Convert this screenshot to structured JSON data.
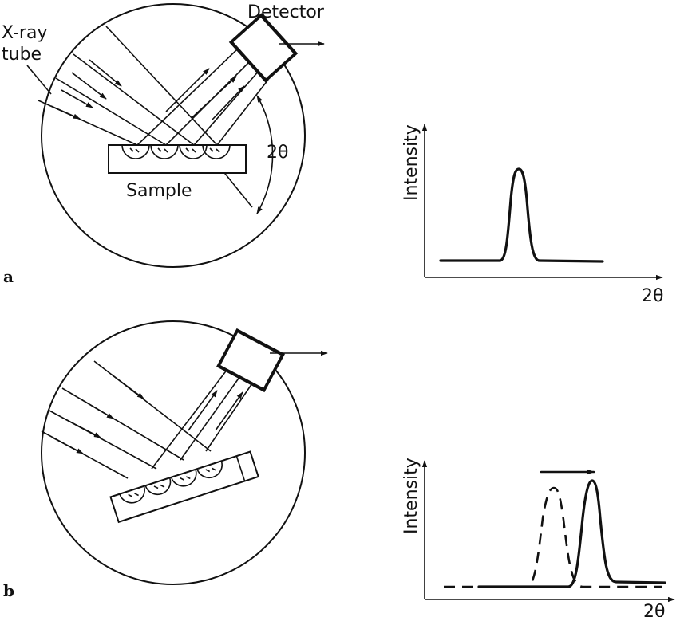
{
  "panel_a": {
    "letter": "a",
    "tube_label_line1": "X-ray",
    "tube_label_line2": "tube",
    "detector_label": "Detector",
    "angle_label": "2θ",
    "sample_label": "Sample",
    "plot": {
      "y_label": "Intensity",
      "x_label": "2θ"
    }
  },
  "panel_b": {
    "letter": "b",
    "plot": {
      "y_label": "Intensity",
      "x_label": "2θ"
    }
  }
}
